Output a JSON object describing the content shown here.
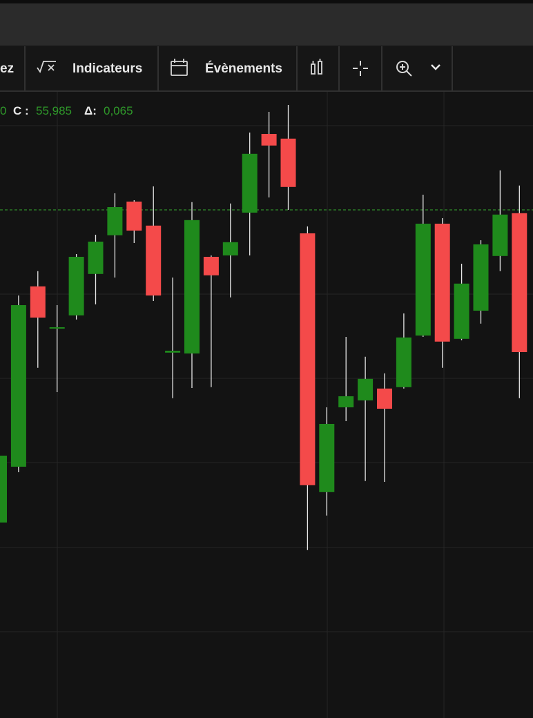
{
  "toolbar": {
    "items": [
      "ez",
      "Indicateurs",
      "Évènements"
    ]
  },
  "legend": {
    "open_tail": "0",
    "close_label": "C :",
    "close_value": "55,985",
    "change_label": "Δ:",
    "change_value": "0,065"
  },
  "chart_data": {
    "type": "candlestick",
    "open": [
      54.958,
      55.16,
      55.813,
      55.66,
      55.708,
      55.858,
      55.998,
      56.12,
      56.033,
      55.573,
      55.57,
      55.92,
      55.925,
      56.08,
      56.365,
      56.348,
      56.005,
      55.068,
      55.375,
      55.4,
      55.443,
      55.448,
      55.635,
      56.04,
      55.623,
      55.725,
      55.923,
      56.078
    ],
    "high": [
      55.205,
      55.78,
      55.868,
      55.745,
      55.93,
      56.0,
      56.15,
      56.125,
      56.175,
      55.845,
      56.118,
      55.925,
      56.113,
      56.37,
      56.445,
      56.47,
      56.03,
      55.375,
      55.63,
      55.558,
      55.498,
      55.715,
      56.145,
      56.06,
      55.895,
      55.98,
      56.233,
      56.178
    ],
    "low": [
      54.955,
      55.14,
      55.518,
      55.43,
      55.693,
      55.748,
      55.845,
      55.97,
      55.76,
      55.408,
      55.445,
      55.448,
      55.773,
      55.925,
      56.135,
      56.09,
      54.858,
      54.983,
      55.325,
      55.108,
      55.105,
      55.443,
      55.63,
      55.518,
      55.618,
      55.678,
      55.868,
      55.408
    ],
    "close": [
      55.2,
      55.745,
      55.7,
      55.665,
      55.92,
      55.975,
      56.1,
      56.015,
      55.78,
      55.58,
      56.053,
      55.853,
      55.973,
      56.293,
      56.323,
      56.173,
      55.093,
      55.315,
      55.415,
      55.478,
      55.37,
      55.628,
      56.04,
      55.613,
      55.823,
      55.965,
      56.073,
      55.575
    ],
    "up_color": "#1f8a1c",
    "down_color": "#f44a4a",
    "ylim": [
      54.25,
      56.5
    ],
    "price_line": 56.09,
    "price_line_color": "#2f8f2a"
  }
}
